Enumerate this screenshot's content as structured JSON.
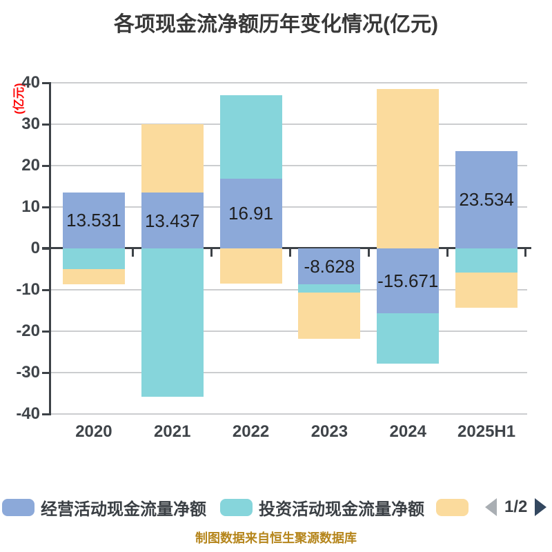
{
  "page": {
    "title": "各项现金流净额历年变化情况(亿元)",
    "source_note": "制图数据来自恒生聚源数据库"
  },
  "y_axis": {
    "unit_label": "(亿元)",
    "unit_label_color": "#FE0606"
  },
  "legend": {
    "pagination": {
      "current_page": "1/2",
      "prev_arrow_color": "#A9AEB3",
      "next_arrow_color": "#33475F"
    }
  },
  "colors": {
    "title_text": "#383838",
    "axis_text": "#3F4449",
    "axis_line": "#3C4146",
    "grid_line": "#CBCDCF",
    "bar_label_text": "#1F1F1F",
    "source_note_text": "#B5851B",
    "background": "#FFFFFF"
  },
  "chart_data": {
    "type": "bar",
    "stacked": true,
    "title": "各项现金流净额历年变化情况(亿元)",
    "ylabel": "(亿元)",
    "ylim": [
      -40,
      40
    ],
    "ytick_interval": 10,
    "grid": true,
    "legend_position": "bottom",
    "legend_note": "legend is paginated (page 1/2); third series swatch visible without label",
    "categories": [
      "2020",
      "2021",
      "2022",
      "2023",
      "2024",
      "2025H1"
    ],
    "series": [
      {
        "name": "经营活动现金流量净额",
        "color": "#8CA9D9",
        "values": [
          13.531,
          13.437,
          16.91,
          -8.628,
          -15.671,
          23.534
        ],
        "data_labels": [
          "13.531",
          "13.437",
          "16.91",
          "-8.628",
          "-15.671",
          "23.534"
        ]
      },
      {
        "name": "投资活动现金流量净额",
        "color": "#86D5DB",
        "values_estimated": true,
        "values": [
          -5.0,
          -35.9,
          20.1,
          -2.0,
          -12.1,
          -5.8
        ]
      },
      {
        "name": "",
        "color": "#FBDB9D",
        "values_estimated": true,
        "values": [
          -3.7,
          16.6,
          -8.5,
          -11.2,
          38.5,
          -8.5
        ]
      }
    ]
  }
}
